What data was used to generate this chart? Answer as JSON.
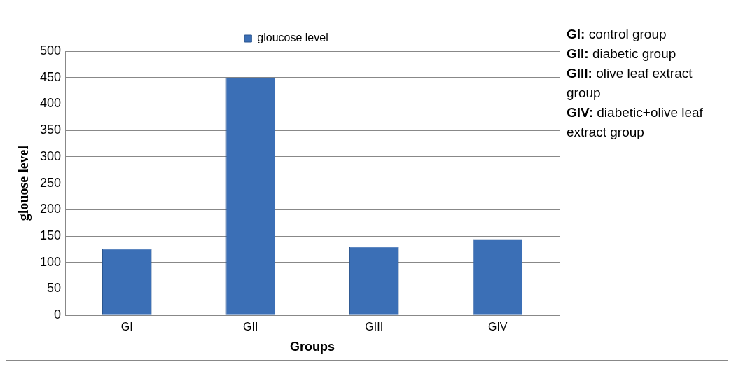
{
  "chart_data": {
    "type": "bar",
    "categories": [
      "GI",
      "GII",
      "GIII",
      "GIV"
    ],
    "series": [
      {
        "name": "gloucose level",
        "color": "#3b6fb6",
        "values": [
          126,
          450,
          130,
          144
        ]
      }
    ],
    "xlabel": "Groups",
    "ylabel": "glouose level",
    "ylim": [
      0,
      500
    ],
    "yticks": [
      0,
      50,
      100,
      150,
      200,
      250,
      300,
      350,
      400,
      450,
      500
    ],
    "grid": "y",
    "legend": "top",
    "annotations": [
      "GI: control group",
      "GII: diabetic group",
      "GIII: olive leaf extract group",
      "GIV: diabetic+olive leaf extract group"
    ]
  }
}
